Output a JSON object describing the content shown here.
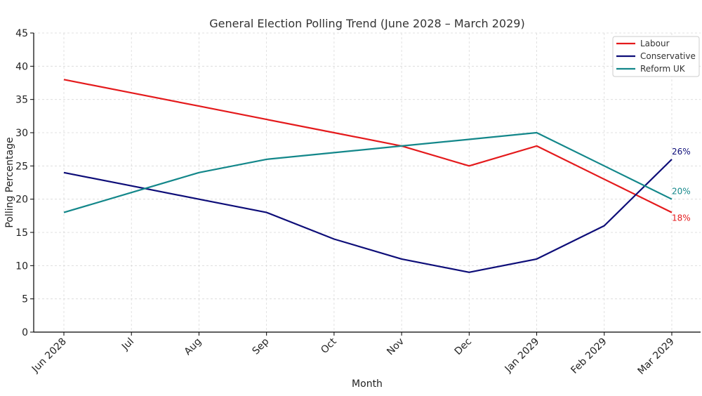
{
  "chart_data": {
    "type": "line",
    "title": "General Election Polling Trend (June 2028 – March 2029)",
    "xlabel": "Month",
    "ylabel": "Polling Percentage",
    "categories": [
      "Jun 2028",
      "Jul",
      "Aug",
      "Sep",
      "Oct",
      "Nov",
      "Dec",
      "Jan 2029",
      "Feb 2029",
      "Mar 2029"
    ],
    "ylim": [
      0,
      45
    ],
    "yticks": [
      "0",
      "5",
      "10",
      "15",
      "20",
      "25",
      "30",
      "35",
      "40",
      "45"
    ],
    "grid": true,
    "legend_position": "top-right",
    "series": [
      {
        "name": "Labour",
        "color": "#e41a1c",
        "values": [
          38,
          36,
          34,
          32,
          30,
          28,
          25,
          28,
          23,
          18
        ],
        "end_label": "18%"
      },
      {
        "name": "Conservative",
        "color": "#0d0d78",
        "values": [
          24,
          22,
          20,
          18,
          14,
          11,
          9,
          11,
          16,
          26
        ],
        "end_label": "26%"
      },
      {
        "name": "Reform UK",
        "color": "#13878a",
        "values": [
          18,
          21,
          24,
          26,
          27,
          28,
          29,
          30,
          25,
          20
        ],
        "end_label": "20%"
      }
    ]
  }
}
